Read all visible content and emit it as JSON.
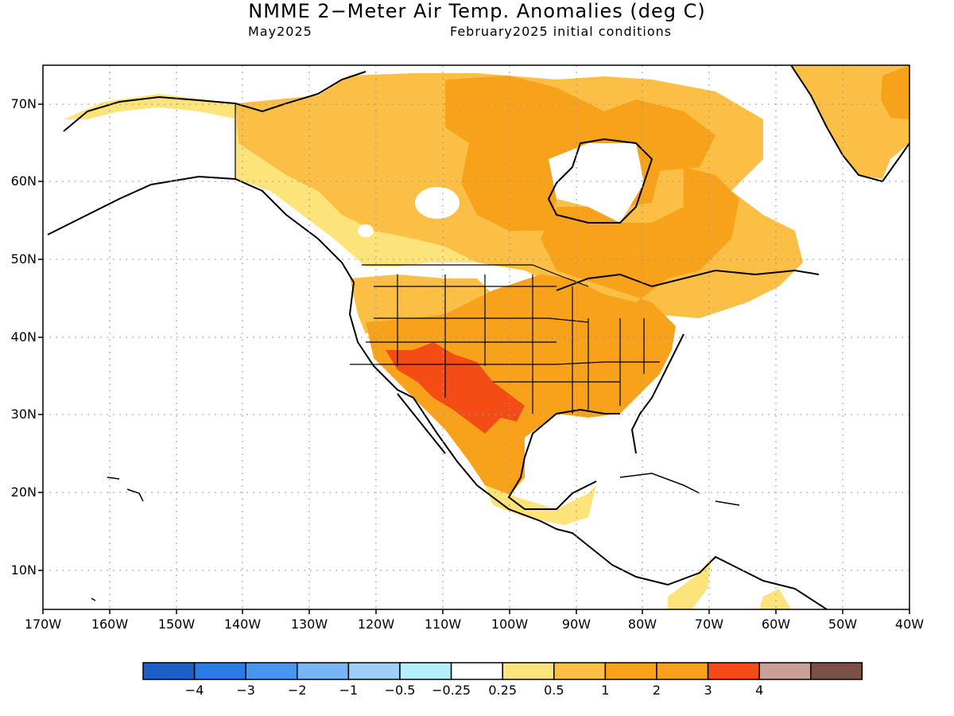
{
  "title": "NMME 2−Meter Air Temp. Anomalies (deg C)",
  "subtitle_left": "May2025",
  "subtitle_right": "February2025 initial conditions",
  "map": {
    "lon_range": [
      -170,
      -40
    ],
    "lat_range": [
      5,
      75
    ],
    "lat_labels": [
      "10N",
      "20N",
      "30N",
      "40N",
      "50N",
      "60N",
      "70N"
    ],
    "lon_labels": [
      "170W",
      "160W",
      "150W",
      "140W",
      "130W",
      "120W",
      "110W",
      "100W",
      "90W",
      "80W",
      "70W",
      "60W",
      "50W",
      "40W"
    ],
    "grid": "dotted"
  },
  "legend": {
    "colors": [
      "#1c5fc9",
      "#2a7be6",
      "#4796ef",
      "#77b5f6",
      "#9ecff9",
      "#b4effb",
      "#ffffff",
      "#fde47a",
      "#fbbf45",
      "#f7a21a",
      "#f9a01c",
      "#f34d15",
      "#c99f96",
      "#7d5045"
    ],
    "labels": [
      "−4",
      "−3",
      "−2",
      "−1",
      "−0.5",
      "−0.25",
      "0.25",
      "0.5",
      "1",
      "2",
      "3",
      "4"
    ]
  },
  "anomaly_colors": {
    "light": "#fde47a",
    "medium": "#fbbf45",
    "strong": "#f7a21a",
    "hot": "#f34d15",
    "cool": "#b4effb"
  }
}
